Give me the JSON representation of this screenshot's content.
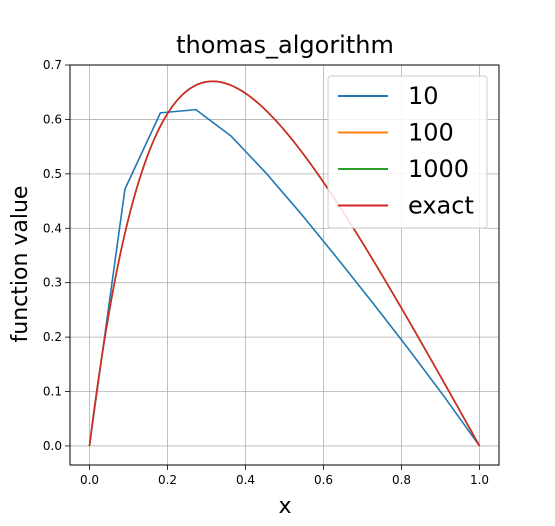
{
  "chart_data": {
    "type": "line",
    "title": "thomas_algorithm",
    "xlabel": "x",
    "ylabel": "function value",
    "xlim": [
      -0.05,
      1.05
    ],
    "ylim": [
      -0.035,
      0.7
    ],
    "xticks": [
      "0.0",
      "0.2",
      "0.4",
      "0.6",
      "0.8",
      "1.0"
    ],
    "xtick_values": [
      0.0,
      0.2,
      0.4,
      0.6,
      0.8,
      1.0
    ],
    "yticks": [
      "0.0",
      "0.1",
      "0.2",
      "0.3",
      "0.4",
      "0.5",
      "0.6",
      "0.7"
    ],
    "ytick_values": [
      0.0,
      0.1,
      0.2,
      0.3,
      0.4,
      0.5,
      0.6,
      0.7
    ],
    "grid": true,
    "legend_position": "top-right",
    "series": [
      {
        "name": "10",
        "color": "#1f77b4",
        "x": [
          0.0,
          0.0909,
          0.1818,
          0.2727,
          0.3636,
          0.4545,
          0.5455,
          0.6364,
          0.7273,
          0.8182,
          0.9091,
          1.0
        ],
        "y": [
          0.0,
          0.472,
          0.612,
          0.618,
          0.569,
          0.5,
          0.424,
          0.344,
          0.262,
          0.178,
          0.091,
          0.0
        ]
      },
      {
        "name": "100",
        "color": "#ff7f0e",
        "function": "exact"
      },
      {
        "name": "1000",
        "color": "#2ca02c",
        "function": "exact"
      },
      {
        "name": "exact",
        "color": "#d62728",
        "function": "exact"
      }
    ]
  }
}
